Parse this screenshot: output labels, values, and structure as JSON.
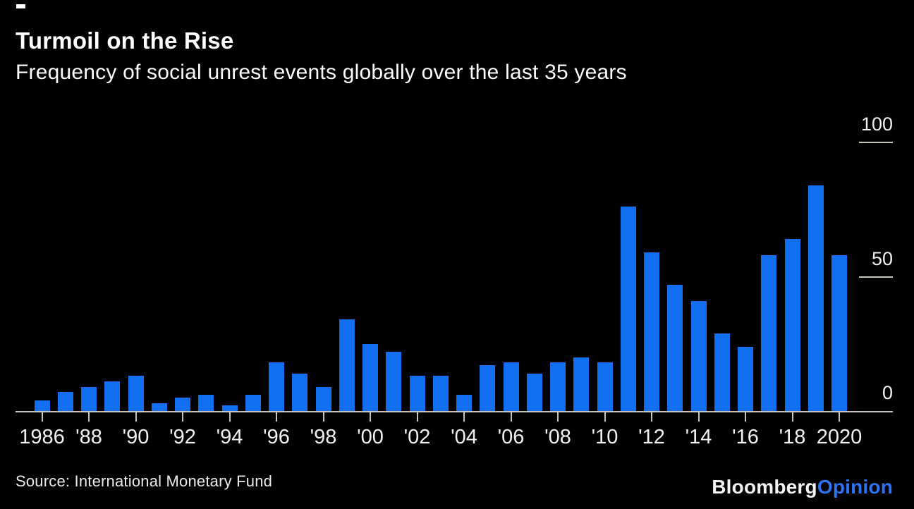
{
  "header": {
    "title": "Turmoil on the Rise",
    "subtitle": "Frequency of social unrest events globally over the last 35 years"
  },
  "footer": {
    "source": "Source: International Monetary Fund",
    "logo_part_white": "Bloomberg",
    "logo_part_blue": "Opinion"
  },
  "colors": {
    "background": "#000000",
    "bar_blue": "#1270f0",
    "logo_blue": "#2d74f5",
    "axis_line": "#c9c4bb",
    "text_white": "#ffffff"
  },
  "chart_data": {
    "type": "bar",
    "title": "Turmoil on the Rise",
    "subtitle": "Frequency of social unrest events globally over the last 35 years",
    "xlabel": "",
    "ylabel": "",
    "ylim": [
      0,
      100
    ],
    "grid": false,
    "legend_position": "none",
    "y_axis_side": "right",
    "y_ticks": [
      {
        "value": 0,
        "label": "0",
        "tick_line": false
      },
      {
        "value": 50,
        "label": "50",
        "tick_line": true
      },
      {
        "value": 100,
        "label": "100",
        "tick_line": true
      }
    ],
    "x": [
      1986,
      1987,
      1988,
      1989,
      1990,
      1991,
      1992,
      1993,
      1994,
      1995,
      1996,
      1997,
      1998,
      1999,
      2000,
      2001,
      2002,
      2003,
      2004,
      2005,
      2006,
      2007,
      2008,
      2009,
      2010,
      2011,
      2012,
      2013,
      2014,
      2015,
      2016,
      2017,
      2018,
      2019,
      2020
    ],
    "values": [
      4,
      7,
      9,
      11,
      13,
      3,
      5,
      6,
      2,
      6,
      18,
      14,
      9,
      34,
      25,
      22,
      13,
      13,
      6,
      17,
      18,
      14,
      18,
      20,
      18,
      76,
      59,
      47,
      41,
      29,
      24,
      58,
      64,
      84,
      58
    ],
    "x_ticks": [
      {
        "year": 1986,
        "label": "1986"
      },
      {
        "year": 1988,
        "label": "'88"
      },
      {
        "year": 1990,
        "label": "'90"
      },
      {
        "year": 1992,
        "label": "'92"
      },
      {
        "year": 1994,
        "label": "'94"
      },
      {
        "year": 1996,
        "label": "'96"
      },
      {
        "year": 1998,
        "label": "'98"
      },
      {
        "year": 2000,
        "label": "'00"
      },
      {
        "year": 2002,
        "label": "'02"
      },
      {
        "year": 2004,
        "label": "'04"
      },
      {
        "year": 2006,
        "label": "'06"
      },
      {
        "year": 2008,
        "label": "'08"
      },
      {
        "year": 2010,
        "label": "'10"
      },
      {
        "year": 2012,
        "label": "'12"
      },
      {
        "year": 2014,
        "label": "'14"
      },
      {
        "year": 2016,
        "label": "'16"
      },
      {
        "year": 2018,
        "label": "'18"
      },
      {
        "year": 2020,
        "label": "2020"
      }
    ]
  }
}
